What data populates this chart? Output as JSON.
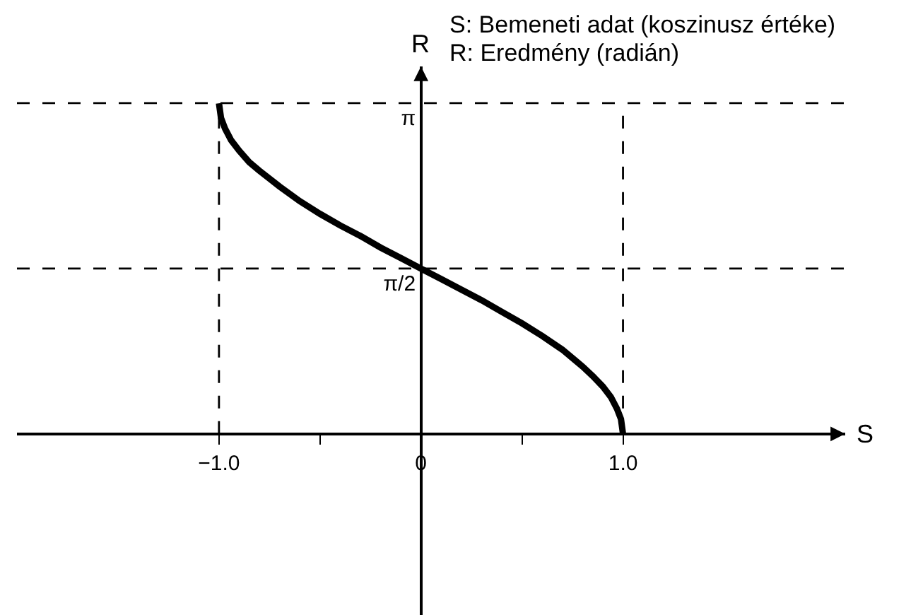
{
  "chart_data": {
    "type": "line",
    "xlabel": "S",
    "ylabel": "R",
    "annotations": [
      "S: Bemeneti adat (koszinusz értéke)",
      "R: Eredmény (radián)"
    ],
    "x": [
      -1,
      -0.99,
      -0.97,
      -0.94,
      -0.9,
      -0.85,
      -0.8,
      -0.7,
      -0.6,
      -0.5,
      -0.4,
      -0.3,
      -0.2,
      -0.1,
      0,
      0.1,
      0.2,
      0.3,
      0.4,
      0.5,
      0.6,
      0.7,
      0.8,
      0.85,
      0.9,
      0.94,
      0.97,
      0.99,
      1
    ],
    "series": [
      {
        "color": "#000000",
        "values": [
          3.14,
          3.0,
          2.9,
          2.79,
          2.69,
          2.58,
          2.5,
          2.35,
          2.21,
          2.09,
          1.98,
          1.88,
          1.77,
          1.67,
          1.57,
          1.47,
          1.37,
          1.27,
          1.16,
          1.05,
          0.93,
          0.8,
          0.64,
          0.55,
          0.45,
          0.35,
          0.24,
          0.14,
          0
        ]
      }
    ],
    "xlim": [
      -2.0,
      2.1
    ],
    "ylim": [
      -1.72,
      3.49
    ],
    "xticks": [
      {
        "value": -1,
        "label": "−1.0"
      },
      {
        "value": -0.5,
        "label": null
      },
      0,
      {
        "value": 0.5,
        "label": null
      },
      {
        "value": 1,
        "label": "1.0"
      }
    ],
    "yticks": [
      {
        "value": 1.5708,
        "label": "π/2"
      },
      {
        "value": 3.1416,
        "label": "π"
      }
    ],
    "ref_lines": [
      {
        "axis": "y",
        "value": 3.1416,
        "color": "#000000",
        "line_style": "dashed"
      },
      {
        "axis": "y",
        "value": 1.5708,
        "color": "#000000",
        "line_style": "dashed"
      },
      {
        "axis": "x",
        "value": -1,
        "color": "#000000",
        "line_style": "dashed"
      },
      {
        "axis": "x",
        "value": 1,
        "color": "#000000",
        "line_style": "dashed"
      }
    ],
    "line_style": "solid"
  }
}
